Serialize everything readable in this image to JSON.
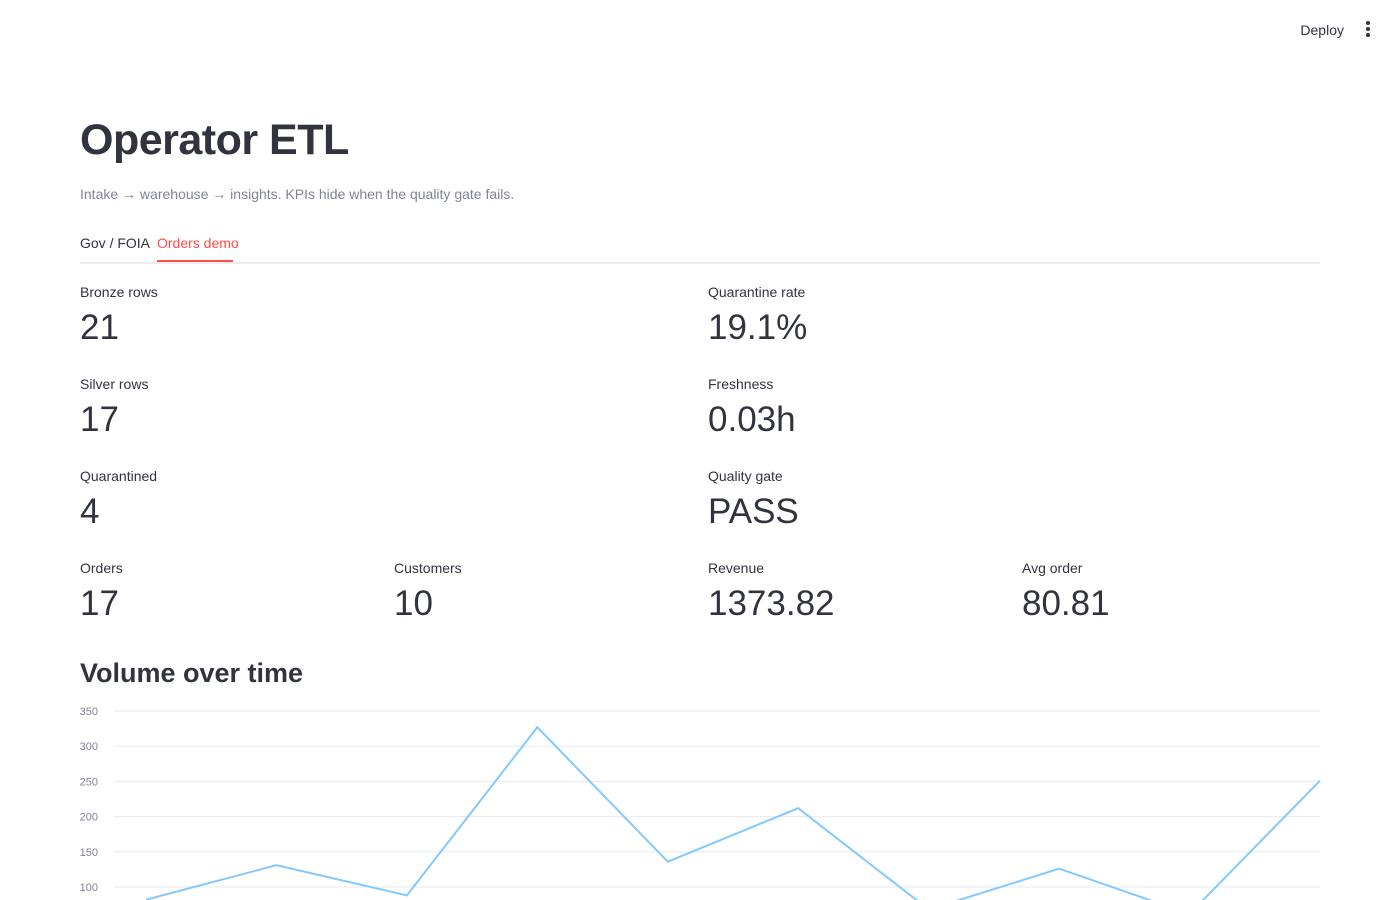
{
  "header": {
    "deploy_label": "Deploy",
    "menu_icon": "kebab-menu-icon"
  },
  "page": {
    "title": "Operator ETL",
    "caption": "Intake → warehouse → insights. KPIs hide when the quality gate fails."
  },
  "tabs": [
    {
      "label": "Gov / FOIA",
      "active": false
    },
    {
      "label": "Orders demo",
      "active": true
    }
  ],
  "metrics": {
    "bronze_rows": {
      "label": "Bronze rows",
      "value": "21"
    },
    "quarantine_rate": {
      "label": "Quarantine rate",
      "value": "19.1%"
    },
    "silver_rows": {
      "label": "Silver rows",
      "value": "17"
    },
    "freshness": {
      "label": "Freshness",
      "value": "0.03h"
    },
    "quarantined": {
      "label": "Quarantined",
      "value": "4"
    },
    "quality_gate": {
      "label": "Quality gate",
      "value": "PASS"
    },
    "orders": {
      "label": "Orders",
      "value": "17"
    },
    "customers": {
      "label": "Customers",
      "value": "10"
    },
    "revenue": {
      "label": "Revenue",
      "value": "1373.82"
    },
    "avg_order": {
      "label": "Avg order",
      "value": "80.81"
    }
  },
  "section": {
    "volume_title": "Volume over time"
  },
  "colors": {
    "accent": "#ff4b4b",
    "line": "#83c9ff",
    "text": "#31333f",
    "muted": "#808495",
    "grid": "#e6eaf1"
  },
  "chart_data": {
    "type": "line",
    "title": "",
    "xlabel": "",
    "ylabel": "",
    "ylim": [
      75,
      350
    ],
    "yticks": [
      100,
      150,
      200,
      250,
      300,
      350
    ],
    "grid": true,
    "x": [
      0,
      1,
      2,
      3,
      4,
      5,
      6,
      7,
      8,
      9
    ],
    "values": [
      82,
      131,
      88,
      327,
      136,
      212,
      68,
      126,
      62,
      251
    ]
  }
}
